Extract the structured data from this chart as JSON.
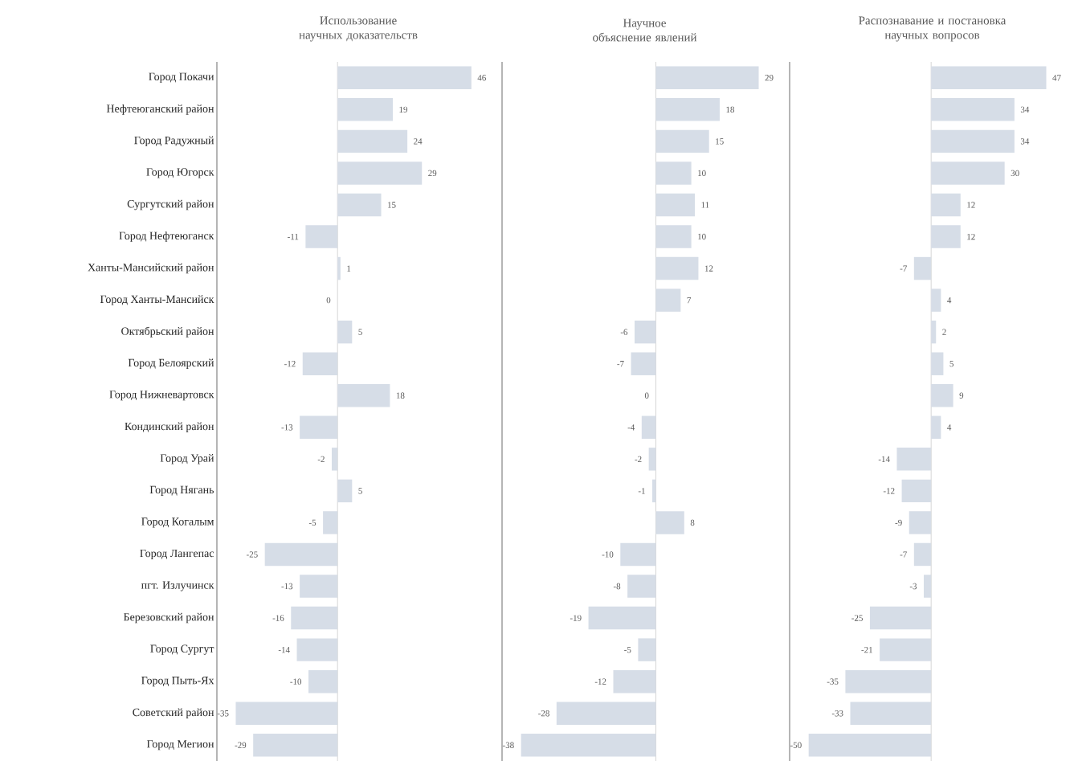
{
  "chart_data": [
    {
      "type": "bar",
      "orientation": "horizontal",
      "title": "Использование научных доказательств",
      "tick_labels": "y",
      "data_labels": true,
      "color": "#d6dde7",
      "categories": [
        "Город Покачи",
        "Нефтеюганский район",
        "Город Радужный",
        "Город Югорск",
        "Сургутский район",
        "Город Нефтеюганск",
        "Ханты-Мансийский район",
        "Город Ханты-Мансийск",
        "Октябрьский район",
        "Город Белоярский",
        "Город Нижневартовск",
        "Кондинский район",
        "Город Урай",
        "Город Нягань",
        "Город Когалым",
        "Город Лангепас",
        "пгт. Излучинск",
        "Березовский район",
        "Город Сургут",
        "Город Пыть-Ях",
        "Советский район",
        "Город Мегион"
      ],
      "values": [
        46,
        19,
        24,
        29,
        15,
        -11,
        1,
        0,
        5,
        -12,
        18,
        -13,
        -2,
        5,
        -5,
        -25,
        -13,
        -16,
        -14,
        -10,
        -35,
        -29
      ]
    },
    {
      "type": "bar",
      "orientation": "horizontal",
      "title": "Научное объяснение явлений",
      "tick_labels": false,
      "data_labels": true,
      "color": "#d6dde7",
      "categories": [
        null,
        null,
        null,
        null,
        null,
        null,
        null,
        null,
        null,
        null,
        null,
        null,
        null,
        null,
        null,
        null,
        null,
        null,
        null,
        null,
        null,
        null
      ],
      "values": [
        29,
        18,
        15,
        10,
        11,
        10,
        12,
        7,
        -6,
        -7,
        0,
        -4,
        -2,
        -1,
        8,
        -10,
        -8,
        -19,
        -5,
        -12,
        -28,
        -38
      ]
    },
    {
      "type": "bar",
      "orientation": "horizontal",
      "title": "Распознавание и постановка научных вопросов",
      "tick_labels": false,
      "data_labels": true,
      "color": "#d6dde7",
      "categories": [
        null,
        null,
        null,
        null,
        null,
        null,
        null,
        null,
        null,
        null,
        null,
        null,
        null,
        null,
        null,
        null,
        null,
        null,
        null,
        null,
        null,
        null
      ],
      "values": [
        47,
        34,
        34,
        30,
        12,
        12,
        -7,
        4,
        2,
        5,
        9,
        4,
        -14,
        -12,
        -9,
        -7,
        -3,
        -25,
        -21,
        -35,
        -33,
        -50
      ]
    }
  ]
}
